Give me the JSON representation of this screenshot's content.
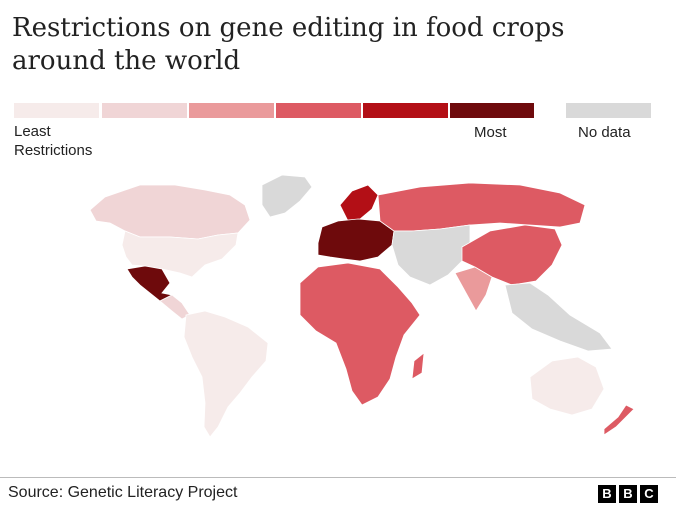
{
  "title": "Restrictions on gene editing in food crops around the world",
  "legend": {
    "low_label": "Least Restrictions",
    "high_label": "Most",
    "no_data_label": "No data",
    "scale_colors": [
      "#f6ebea",
      "#f0d5d6",
      "#ea9a9b",
      "#dd5a63",
      "#b30f16",
      "#6e0a0c"
    ],
    "no_data_color": "#d9d9d9"
  },
  "map": {
    "regions": [
      {
        "name": "Canada & Alaska",
        "level": 1
      },
      {
        "name": "United States",
        "level": 0
      },
      {
        "name": "Greenland",
        "level": "no data"
      },
      {
        "name": "Mexico",
        "level": 5
      },
      {
        "name": "Central America",
        "level": 1
      },
      {
        "name": "South America",
        "level": 0
      },
      {
        "name": "European Union",
        "level": 5
      },
      {
        "name": "Scandinavia",
        "level": 4
      },
      {
        "name": "Russia",
        "level": 3
      },
      {
        "name": "Africa",
        "level": 3
      },
      {
        "name": "Middle East & Central Asia",
        "level": "no data"
      },
      {
        "name": "India",
        "level": 2
      },
      {
        "name": "China",
        "level": 3
      },
      {
        "name": "Southeast Asia",
        "level": "no data"
      },
      {
        "name": "Australia",
        "level": 0
      },
      {
        "name": "New Zealand",
        "level": 3
      }
    ]
  },
  "source": "Source: Genetic Literacy Project",
  "logo": [
    "B",
    "B",
    "C"
  ]
}
